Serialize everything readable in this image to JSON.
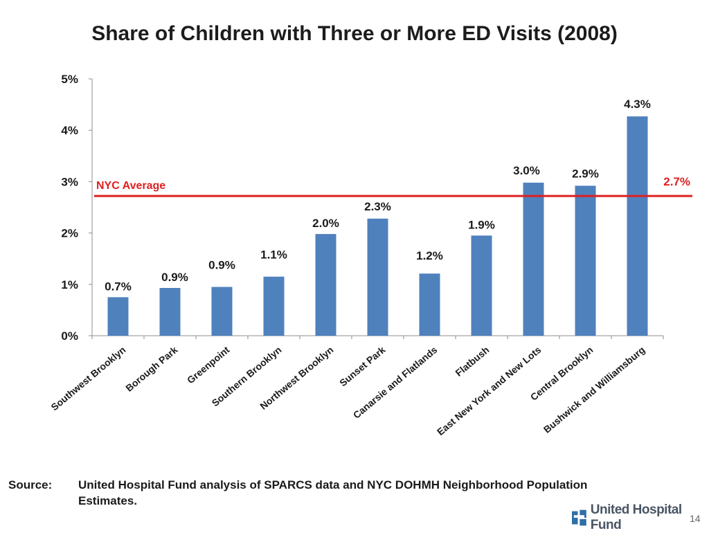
{
  "title": "Share of Children with Three or More ED Visits (2008)",
  "chart_data": {
    "type": "bar",
    "title": "Share of Children with Three or More ED Visits (2008)",
    "categories": [
      "Southwest Brooklyn",
      "Borough Park",
      "Greenpoint",
      "Southern Brooklyn",
      "Northwest Brooklyn",
      "Sunset Park",
      "Canarsie and Flatlands",
      "Flatbush",
      "East New York and New Lots",
      "Central Brooklyn",
      "Bushwick and Williamsburg"
    ],
    "values": [
      0.75,
      0.93,
      0.95,
      1.15,
      1.98,
      2.28,
      1.21,
      1.95,
      2.98,
      2.92,
      4.27
    ],
    "data_labels": [
      "0.7%",
      "0.9%",
      "0.9%",
      "1.1%",
      "2.0%",
      "2.3%",
      "1.2%",
      "1.9%",
      "3.0%",
      "2.9%",
      "4.3%"
    ],
    "ylim": [
      0,
      5
    ],
    "yticks": [
      0,
      1,
      2,
      3,
      4,
      5
    ],
    "ytick_labels": [
      "0%",
      "1%",
      "2%",
      "3%",
      "4%",
      "5%"
    ],
    "xlabel": "",
    "ylabel": "",
    "bar_color": "#4f81bd",
    "reference_line": {
      "label": "NYC Average",
      "value": 2.72,
      "value_label": "2.7%",
      "color": "#e02020"
    }
  },
  "source": {
    "label": "Source:",
    "text": "United Hospital Fund analysis of SPARCS data and NYC DOHMH Neighborhood Population Estimates."
  },
  "logo": {
    "text": "United Hospital Fund",
    "icon": "united-hospital-fund-logo-icon",
    "color": "#2f6fa7"
  },
  "page_number": "14"
}
